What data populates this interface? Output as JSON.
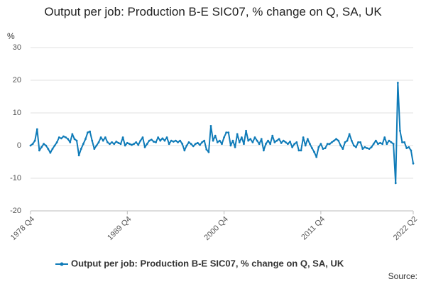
{
  "chart_data": {
    "type": "line",
    "title": "Output per job: Production B-E SIC07, % change on Q, SA, UK",
    "y_label": "%",
    "source": "Source:",
    "categories": [
      "1978 Q4",
      null,
      null,
      null,
      null,
      null,
      null,
      null,
      null,
      null,
      null,
      null,
      null,
      null,
      null,
      null,
      null,
      null,
      null,
      null,
      null,
      null,
      null,
      null,
      null,
      null,
      null,
      null,
      null,
      null,
      null,
      null,
      null,
      null,
      null,
      null,
      null,
      null,
      null,
      null,
      null,
      null,
      null,
      null,
      "1989 Q4",
      null,
      null,
      null,
      null,
      null,
      null,
      null,
      null,
      null,
      null,
      null,
      null,
      null,
      null,
      null,
      null,
      null,
      null,
      null,
      null,
      null,
      null,
      null,
      null,
      null,
      null,
      null,
      null,
      null,
      null,
      null,
      null,
      null,
      null,
      null,
      null,
      null,
      null,
      null,
      null,
      null,
      null,
      null,
      "2000 Q4",
      null,
      null,
      null,
      null,
      null,
      null,
      null,
      null,
      null,
      null,
      null,
      null,
      null,
      null,
      null,
      null,
      null,
      null,
      null,
      null,
      null,
      null,
      null,
      null,
      null,
      null,
      null,
      null,
      null,
      null,
      null,
      null,
      null,
      null,
      null,
      null,
      null,
      null,
      null,
      null,
      null,
      null,
      null,
      "2011 Q4",
      null,
      null,
      null,
      null,
      null,
      null,
      null,
      null,
      null,
      null,
      null,
      null,
      null,
      null,
      null,
      null,
      null,
      null,
      null,
      null,
      null,
      null,
      null,
      null,
      null,
      null,
      null,
      null,
      null,
      null,
      null,
      null,
      null,
      null,
      null,
      null,
      null,
      null,
      null,
      null,
      null,
      "2022 Q2"
    ],
    "series": [
      {
        "name": "Output per job: Production B-E SIC07, % change on Q, SA, UK",
        "color": "#0f7bb8",
        "values": [
          0,
          0.5,
          1.5,
          5,
          -1.5,
          -0.5,
          0.5,
          0,
          -1,
          -2.2,
          -1,
          0,
          1,
          2.5,
          2.2,
          2.8,
          2.5,
          2,
          1,
          3.5,
          2,
          1.5,
          -3,
          -1,
          0.5,
          2,
          4,
          4.3,
          1.5,
          -1,
          0,
          1,
          2.5,
          1.5,
          2.5,
          1,
          0.5,
          1,
          0.5,
          1.2,
          0.8,
          0.5,
          2.5,
          0,
          0.8,
          0.5,
          0.2,
          0.5,
          1,
          0.2,
          1.5,
          2.5,
          -0.5,
          0.5,
          1.5,
          1.8,
          1.2,
          1,
          2.5,
          1.5,
          2.2,
          1.5,
          2.5,
          0.5,
          1.5,
          1.2,
          1.5,
          1,
          1.5,
          0.5,
          -1.5,
          0,
          1,
          0.5,
          -0.2,
          0.5,
          0.8,
          0.2,
          1,
          1.5,
          -1.2,
          -2,
          6,
          1.5,
          3,
          1,
          1.5,
          0.5,
          2.5,
          4,
          4,
          0,
          1.5,
          -0.5,
          3.5,
          1,
          2.5,
          0.5,
          4.5,
          1.5,
          2,
          1,
          2.5,
          1.5,
          0.5,
          2,
          -1.5,
          0.5,
          1.5,
          0.5,
          3,
          1,
          1.5,
          2,
          0.8,
          1.5,
          1,
          0.5,
          1.2,
          -0.5,
          0.5,
          1,
          -1.5,
          -1.5,
          2.5,
          0,
          2,
          0.5,
          -0.8,
          -2,
          -3.5,
          -0.5,
          0.5,
          -1,
          -0.8,
          0.5,
          0.5,
          1,
          1.5,
          2,
          1.5,
          0,
          -1,
          1,
          1.5,
          3.5,
          1.5,
          0,
          -0.5,
          1,
          1,
          -1,
          -0.5,
          -0.8,
          -1,
          -0.5,
          0.5,
          1.5,
          0.5,
          0.8,
          0.5,
          2.5,
          0.5,
          1.5,
          1,
          0.5,
          -11.5,
          19.2,
          4.5,
          1,
          1,
          -0.8,
          -0.5,
          -1.5,
          -5.5
        ]
      }
    ],
    "ylim": [
      -20,
      30
    ],
    "yticks": [
      -20,
      -10,
      0,
      10,
      20,
      30
    ],
    "grid": true
  }
}
